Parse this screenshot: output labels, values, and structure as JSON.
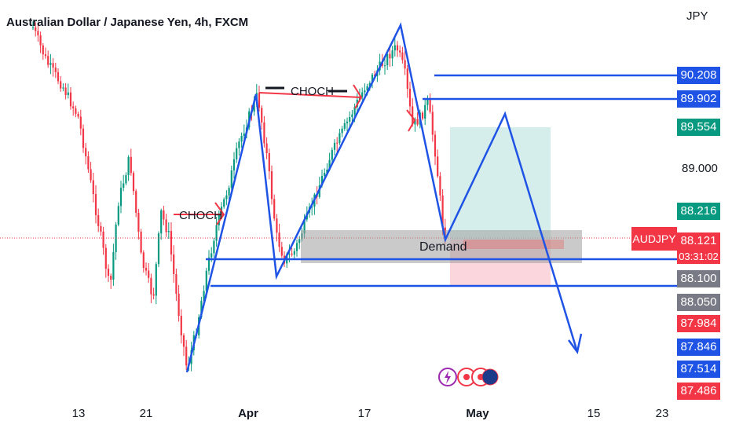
{
  "chart_data": {
    "type": "candlestick",
    "title": "Australian Dollar / Japanese Yen, 4h, FXCM",
    "currency": "JPY",
    "symbol": "AUDJPY",
    "timer": "03:31:02",
    "x_ticks": [
      {
        "label": "13",
        "bold": false
      },
      {
        "label": "21",
        "bold": false
      },
      {
        "label": "Apr",
        "bold": true
      },
      {
        "label": "17",
        "bold": false
      },
      {
        "label": "May",
        "bold": true
      },
      {
        "label": "15",
        "bold": false
      },
      {
        "label": "23",
        "bold": false
      }
    ],
    "y_axis_labels": [
      {
        "value": "90.208",
        "color": "#1e53e5"
      },
      {
        "value": "89.902",
        "color": "#1e53e5"
      },
      {
        "value": "89.554",
        "color": "#089981"
      },
      {
        "value": "89.000",
        "color": null
      },
      {
        "value": "88.216",
        "color": "#089981"
      },
      {
        "value": "88.121",
        "color": "#f23645"
      },
      {
        "value": "88.100",
        "color": "#787b86"
      },
      {
        "value": "88.050",
        "color": "#787b86"
      },
      {
        "value": "87.984",
        "color": "#f23645"
      },
      {
        "value": "87.846",
        "color": "#1e53e5"
      },
      {
        "value": "87.514",
        "color": "#1e53e5"
      },
      {
        "value": "87.486",
        "color": "#f23645"
      }
    ],
    "annotations": {
      "choch_left": "CHOCH",
      "choch_top": "CHOCH",
      "demand": "Demand"
    }
  }
}
